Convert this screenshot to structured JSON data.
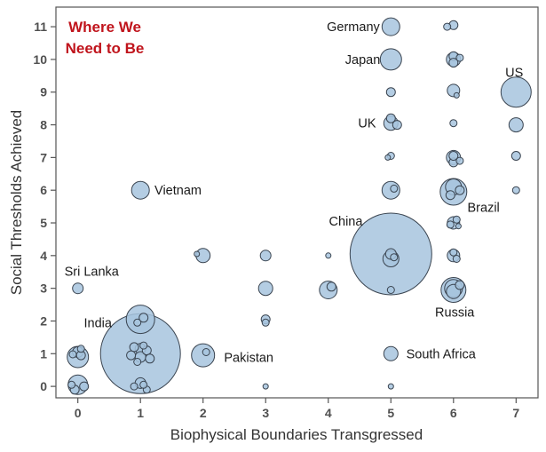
{
  "colors": {
    "bubble_fill": "#a7c4de",
    "bubble_stroke": "#3a4450",
    "goal_text": "#c0141c",
    "frame": "#555555"
  },
  "chart_data": {
    "type": "scatter",
    "title": "",
    "xlabel": "Biophysical Boundaries Transgressed",
    "ylabel": "Social Thresholds Achieved",
    "xlim": [
      -0.35,
      7.35
    ],
    "ylim": [
      -0.35,
      11.6
    ],
    "x_ticks": [
      0,
      1,
      2,
      3,
      4,
      5,
      6,
      7
    ],
    "y_ticks": [
      0,
      1,
      2,
      3,
      4,
      5,
      6,
      7,
      8,
      9,
      10,
      11
    ],
    "grid": false,
    "annotation": {
      "line1": "Where We",
      "line2": "Need to Be"
    },
    "labels": [
      {
        "text": "Germany",
        "x": 4.4,
        "y": 11
      },
      {
        "text": "Japan",
        "x": 4.55,
        "y": 10
      },
      {
        "text": "US",
        "x": 6.97,
        "y": 9.6
      },
      {
        "text": "UK",
        "x": 4.62,
        "y": 8.05
      },
      {
        "text": "Vietnam",
        "x": 1.6,
        "y": 6
      },
      {
        "text": "China",
        "x": 4.28,
        "y": 5.05
      },
      {
        "text": "Brazil",
        "x": 6.48,
        "y": 5.48
      },
      {
        "text": "Sri Lanka",
        "x": 0.22,
        "y": 3.52
      },
      {
        "text": "India",
        "x": 0.32,
        "y": 1.95
      },
      {
        "text": "Pakistan",
        "x": 2.73,
        "y": 0.88
      },
      {
        "text": "Russia",
        "x": 6.02,
        "y": 2.27
      },
      {
        "text": "South Africa",
        "x": 5.8,
        "y": 1
      }
    ],
    "points": [
      [
        5,
        4.05,
        46
      ],
      [
        1,
        1.0,
        45
      ],
      [
        7,
        9,
        17
      ],
      [
        1,
        2.05,
        16
      ],
      [
        6,
        5.95,
        15
      ],
      [
        5,
        10,
        12
      ],
      [
        6,
        2.95,
        14
      ],
      [
        0,
        0.9,
        12
      ],
      [
        0,
        0.05,
        11
      ],
      [
        2,
        0.95,
        13
      ],
      [
        5,
        11,
        10
      ],
      [
        5,
        6,
        10
      ],
      [
        1,
        6,
        10
      ],
      [
        4,
        2.95,
        10
      ],
      [
        3,
        3,
        8
      ],
      [
        7,
        8,
        8
      ],
      [
        6,
        7,
        8
      ],
      [
        6,
        10,
        8
      ],
      [
        5,
        8.05,
        8
      ],
      [
        6,
        3,
        10
      ],
      [
        5,
        3.9,
        9
      ],
      [
        2,
        4,
        8
      ],
      [
        3,
        4,
        6
      ],
      [
        6,
        4,
        7
      ],
      [
        6,
        5,
        7
      ],
      [
        6,
        9.05,
        7
      ],
      [
        5,
        1,
        8
      ],
      [
        0,
        3,
        6
      ],
      [
        6,
        11.05,
        5
      ],
      [
        6,
        6.1,
        9
      ],
      [
        5,
        4.05,
        6
      ],
      [
        6,
        10.1,
        5
      ],
      [
        6,
        9.9,
        5
      ],
      [
        6,
        8.05,
        4
      ],
      [
        6,
        6.85,
        5
      ],
      [
        5,
        8.2,
        5
      ],
      [
        5,
        7.05,
        4
      ],
      [
        5,
        9,
        5
      ],
      [
        7,
        7.05,
        5
      ],
      [
        7,
        6,
        4
      ],
      [
        6,
        2.9,
        8
      ],
      [
        1,
        0.1,
        6
      ],
      [
        1,
        1.15,
        6
      ],
      [
        1,
        0.9,
        6
      ],
      [
        0.9,
        1.2,
        5
      ],
      [
        1.1,
        1.1,
        5
      ],
      [
        0.85,
        0.95,
        5
      ],
      [
        1.15,
        0.85,
        5
      ],
      [
        1.05,
        1.25,
        4
      ],
      [
        0.95,
        0.75,
        4
      ],
      [
        0,
        1.05,
        6
      ],
      [
        0.05,
        0.95,
        5
      ],
      [
        -0.05,
        -0.1,
        5
      ],
      [
        0.1,
        0.0,
        5
      ],
      [
        3,
        2.05,
        5
      ],
      [
        3,
        1.95,
        4
      ],
      [
        3,
        0,
        3
      ],
      [
        4,
        4,
        3
      ],
      [
        5,
        0,
        3
      ],
      [
        1.05,
        2.1,
        5
      ],
      [
        0.95,
        1.95,
        4
      ],
      [
        4.05,
        3.05,
        5
      ],
      [
        5.05,
        3.95,
        4
      ],
      [
        5.05,
        6.05,
        4
      ],
      [
        6.05,
        5.1,
        4
      ],
      [
        6.1,
        10.05,
        4
      ],
      [
        5.9,
        11,
        4
      ],
      [
        6.05,
        8.9,
        3
      ],
      [
        5,
        2.95,
        4
      ],
      [
        6,
        4.1,
        4
      ],
      [
        6.05,
        3.9,
        4
      ],
      [
        4.95,
        7,
        3
      ],
      [
        6,
        7.05,
        5
      ],
      [
        6.1,
        6.9,
        4
      ],
      [
        5.95,
        4.95,
        4
      ],
      [
        0.9,
        0.0,
        4
      ],
      [
        1.1,
        -0.1,
        4
      ],
      [
        -0.1,
        0.05,
        4
      ],
      [
        1.9,
        4.05,
        3
      ],
      [
        1.05,
        0.05,
        4
      ],
      [
        0.05,
        1.15,
        4
      ],
      [
        5.1,
        8.0,
        5
      ],
      [
        2.05,
        1.05,
        4
      ],
      [
        6.1,
        3.1,
        5
      ],
      [
        6.1,
        6.0,
        5
      ],
      [
        6.08,
        4.9,
        3
      ],
      [
        5.95,
        5.85,
        5
      ],
      [
        -0.08,
        0.98,
        4
      ]
    ]
  }
}
